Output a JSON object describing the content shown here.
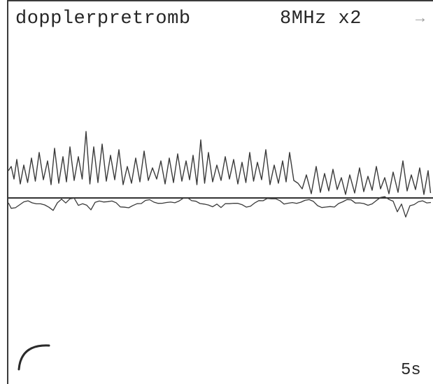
{
  "header": {
    "file_name": "dopplerpretromb",
    "probe_setting": "8MHz x2",
    "arrow_icon": "right-arrow-icon"
  },
  "footer": {
    "time_scale": "5s"
  },
  "icons": {
    "partial_circle": "arc-icon"
  },
  "colors": {
    "trace": "#3a3a3a",
    "background": "#ffffff"
  }
}
